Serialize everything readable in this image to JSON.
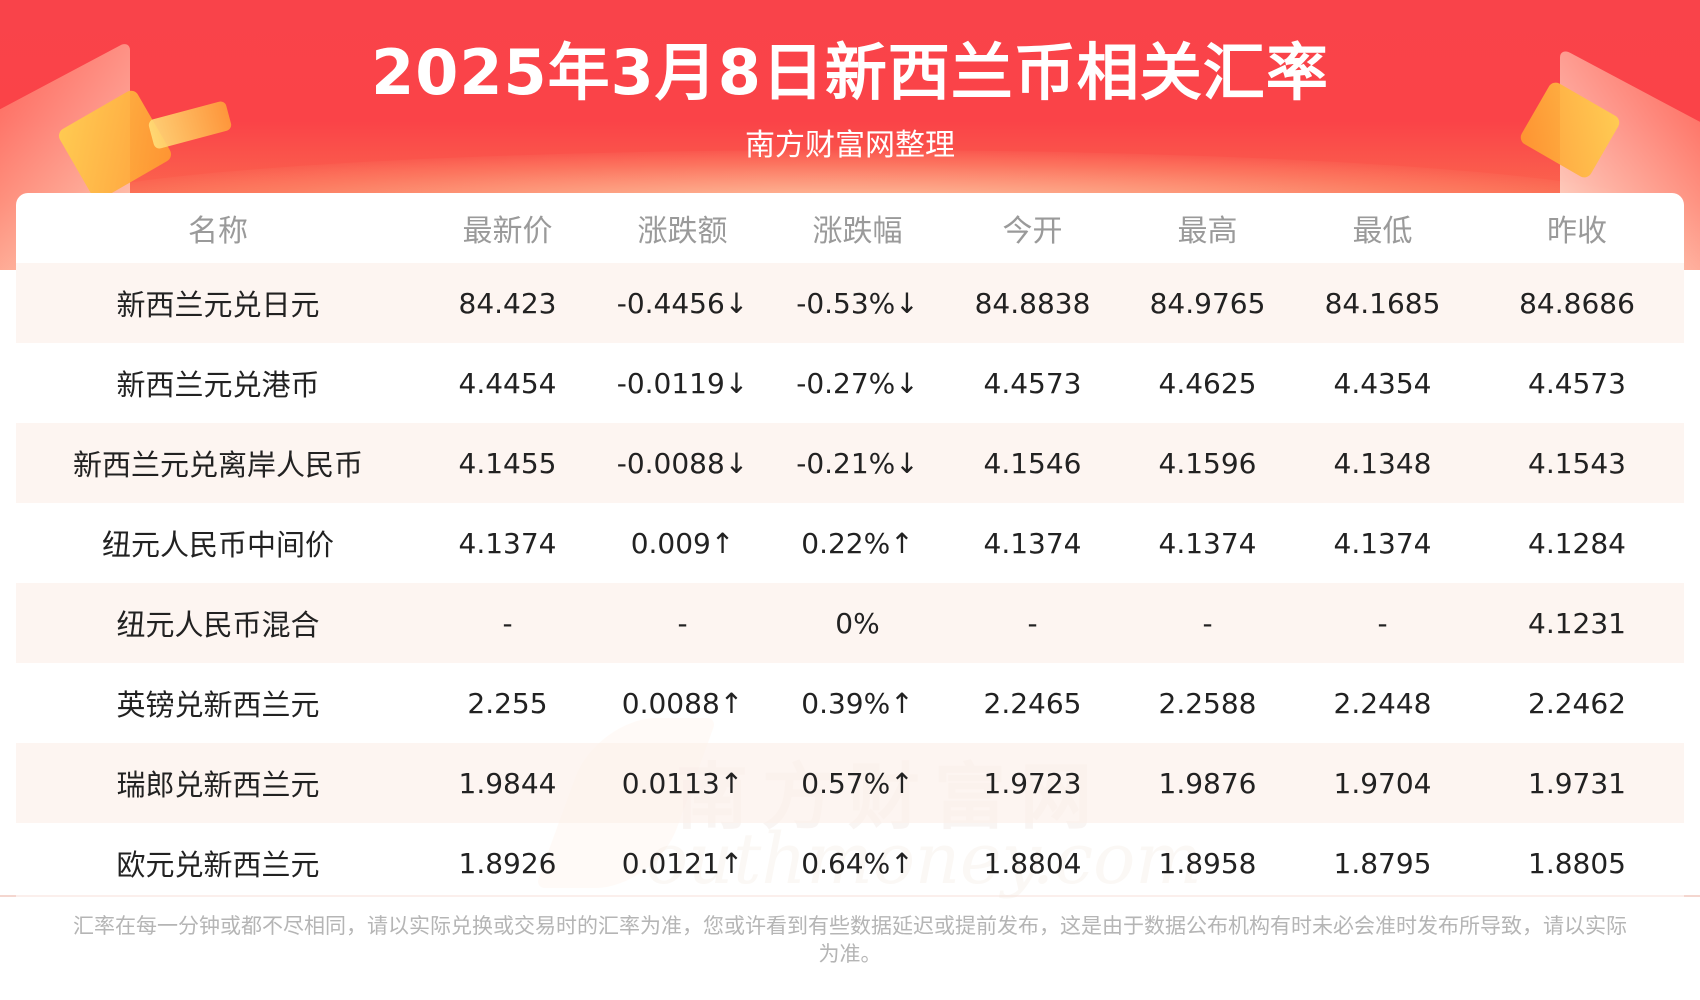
{
  "header": {
    "title": "2025年3月8日新西兰币相关汇率",
    "subtitle": "南方财富网整理"
  },
  "table": {
    "columns": [
      "名称",
      "最新价",
      "涨跌额",
      "涨跌幅",
      "今开",
      "最高",
      "最低",
      "昨收"
    ],
    "rows": [
      {
        "name": "新西兰元兑日元",
        "latest": "84.423",
        "change": "-0.4456↓",
        "pct": "-0.53%↓",
        "open": "84.8838",
        "high": "84.9765",
        "low": "84.1685",
        "prev_close": "84.8686",
        "trend": "down"
      },
      {
        "name": "新西兰元兑港币",
        "latest": "4.4454",
        "change": "-0.0119↓",
        "pct": "-0.27%↓",
        "open": "4.4573",
        "high": "4.4625",
        "low": "4.4354",
        "prev_close": "4.4573",
        "trend": "down"
      },
      {
        "name": "新西兰元兑离岸人民币",
        "latest": "4.1455",
        "change": "-0.0088↓",
        "pct": "-0.21%↓",
        "open": "4.1546",
        "high": "4.1596",
        "low": "4.1348",
        "prev_close": "4.1543",
        "trend": "down"
      },
      {
        "name": "纽元人民币中间价",
        "latest": "4.1374",
        "change": "0.009↑",
        "pct": "0.22%↑",
        "open": "4.1374",
        "high": "4.1374",
        "low": "4.1374",
        "prev_close": "4.1284",
        "trend": "up"
      },
      {
        "name": "纽元人民币混合",
        "latest": "-",
        "change": "-",
        "pct": "0%",
        "open": "-",
        "high": "-",
        "low": "-",
        "prev_close": "4.1231",
        "trend": "flat"
      },
      {
        "name": "英镑兑新西兰元",
        "latest": "2.255",
        "change": "0.0088↑",
        "pct": "0.39%↑",
        "open": "2.2465",
        "high": "2.2588",
        "low": "2.2448",
        "prev_close": "2.2462",
        "trend": "up"
      },
      {
        "name": "瑞郎兑新西兰元",
        "latest": "1.9844",
        "change": "0.0113↑",
        "pct": "0.57%↑",
        "open": "1.9723",
        "high": "1.9876",
        "low": "1.9704",
        "prev_close": "1.9731",
        "trend": "up"
      },
      {
        "name": "欧元兑新西兰元",
        "latest": "1.8926",
        "change": "0.0121↑",
        "pct": "0.64%↑",
        "open": "1.8804",
        "high": "1.8958",
        "low": "1.8795",
        "prev_close": "1.8805",
        "trend": "up"
      }
    ]
  },
  "watermark": {
    "cn": "南方财富网",
    "en": "outhmoney.com"
  },
  "footer": {
    "note": "汇率在每一分钟或都不尽相同，请以实际兑换或交易时的汇率为准，您或许看到有些数据延迟或提前发布，这是由于数据公布机构有时未必会准时发布所导致，请以实际为准。"
  },
  "colors": {
    "up": "#e8262a",
    "down": "#2a8a26",
    "banner": "#f9434a",
    "row_stripe": "#fdf3ee"
  }
}
